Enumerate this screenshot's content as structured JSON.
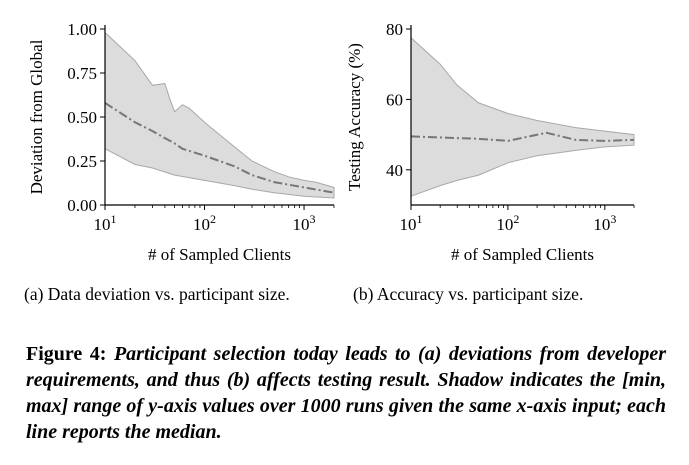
{
  "chart_data": [
    {
      "type": "line",
      "panel": "a",
      "xlabel": "# of Sampled Clients",
      "ylabel": "Deviation from Global",
      "xscale": "log",
      "xlim": [
        10,
        2000
      ],
      "ylim": [
        0,
        1
      ],
      "x_ticks": [
        10,
        100,
        1000
      ],
      "y_ticks": [
        0,
        0.25,
        0.5,
        0.75,
        1.0
      ],
      "y_tick_labels": [
        "0.00",
        "0.25",
        "0.50",
        "0.75",
        "1.00"
      ],
      "grid": false,
      "series": [
        {
          "role": "median",
          "x": [
            10,
            20,
            30,
            40,
            50,
            60,
            100,
            200,
            300,
            500,
            1000,
            2000
          ],
          "y": [
            0.58,
            0.47,
            0.42,
            0.38,
            0.35,
            0.32,
            0.28,
            0.22,
            0.17,
            0.13,
            0.1,
            0.07
          ]
        },
        {
          "role": "max",
          "x": [
            10,
            20,
            30,
            40,
            45,
            50,
            60,
            70,
            100,
            200,
            300,
            500,
            700,
            1000,
            1300,
            1500,
            2000
          ],
          "y": [
            0.98,
            0.82,
            0.68,
            0.69,
            0.6,
            0.53,
            0.57,
            0.55,
            0.47,
            0.33,
            0.25,
            0.19,
            0.16,
            0.14,
            0.13,
            0.12,
            0.1
          ]
        },
        {
          "role": "min",
          "x": [
            10,
            20,
            30,
            50,
            100,
            200,
            300,
            500,
            1000,
            2000
          ],
          "y": [
            0.32,
            0.23,
            0.21,
            0.17,
            0.14,
            0.11,
            0.09,
            0.07,
            0.05,
            0.04
          ]
        }
      ]
    },
    {
      "type": "line",
      "panel": "b",
      "xlabel": "# of Sampled Clients",
      "ylabel": "Testing Accuracy (%)",
      "xscale": "log",
      "xlim": [
        10,
        2000
      ],
      "ylim": [
        30,
        80
      ],
      "x_ticks": [
        10,
        100,
        1000
      ],
      "y_ticks": [
        40,
        60,
        80
      ],
      "y_tick_labels": [
        "40",
        "60",
        "80"
      ],
      "grid": false,
      "series": [
        {
          "role": "median",
          "x": [
            10,
            30,
            50,
            100,
            250,
            500,
            1000,
            2000
          ],
          "y": [
            49.5,
            49.0,
            48.8,
            48.2,
            50.5,
            48.5,
            48.2,
            48.5
          ]
        },
        {
          "role": "max",
          "x": [
            10,
            20,
            30,
            50,
            100,
            200,
            500,
            1000,
            2000
          ],
          "y": [
            77.5,
            70,
            64,
            59,
            56,
            54,
            52,
            51,
            50
          ]
        },
        {
          "role": "min",
          "x": [
            10,
            20,
            30,
            50,
            100,
            200,
            500,
            1000,
            2000
          ],
          "y": [
            32.5,
            35.5,
            37,
            38.5,
            42,
            44,
            45.5,
            46.5,
            47
          ]
        }
      ]
    }
  ],
  "subcaptions": {
    "a": "(a) Data deviation vs. participant size.",
    "b": "(b) Accuracy vs. participant size."
  },
  "caption": {
    "label": "Figure 4:",
    "text": "Participant selection today leads to (a) deviations from developer requirements, and thus (b) affects testing result. Shadow indicates the [min, max] range of y-axis values over 1000 runs given the same x-axis input; each line reports the median."
  },
  "colors": {
    "band_fill": "#dcdcdc",
    "band_edge": "#a8a8a8",
    "median_line": "#777777"
  }
}
